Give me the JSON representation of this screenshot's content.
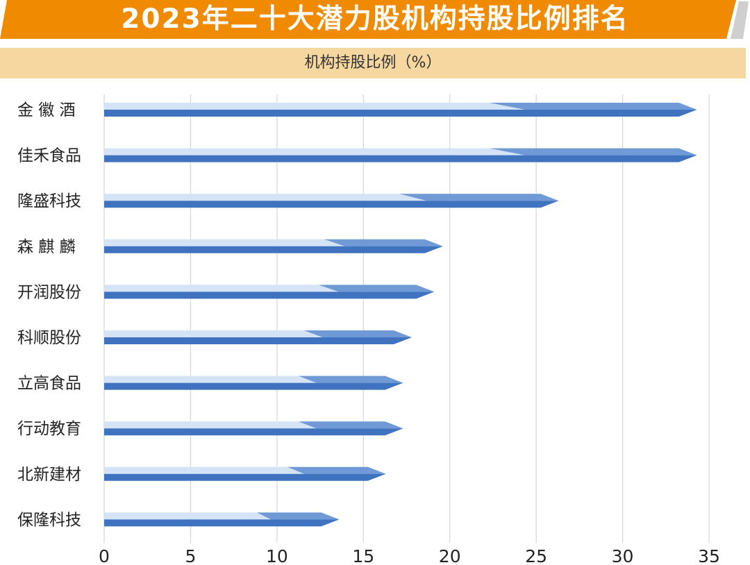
{
  "header": {
    "title": "2023年二十大潜力股机构持股比例排名",
    "subtitle": "机构持股比例（%）"
  },
  "colors": {
    "banner": "#f08a00",
    "subtitle_bg": "#f7d7a0",
    "bar_dark": "#3f72bf",
    "bar_mid": "#6f9ad6",
    "bar_light": "#d4e4f6",
    "grid": "#d6d6d6"
  },
  "chart_data": {
    "type": "bar",
    "orientation": "horizontal",
    "title": "2023年二十大潜力股机构持股比例排名",
    "xlabel": "机构持股比例（%）",
    "ylabel": "",
    "categories": [
      "金 徽 酒",
      "佳禾食品",
      "隆盛科技",
      "森 麒 麟",
      "开润股份",
      "科顺股份",
      "立高食品",
      "行动教育",
      "北新建材",
      "保隆科技"
    ],
    "values": [
      34.3,
      34.3,
      26.3,
      19.6,
      19.1,
      17.8,
      17.3,
      17.3,
      16.3,
      13.6
    ],
    "xlim": [
      0,
      35
    ],
    "xticks": [
      0,
      5,
      10,
      15,
      20,
      25,
      30,
      35
    ],
    "xtick_labels": [
      "0",
      "5",
      "10",
      "15",
      "20",
      "25",
      "30",
      "35"
    ],
    "grid": true
  }
}
